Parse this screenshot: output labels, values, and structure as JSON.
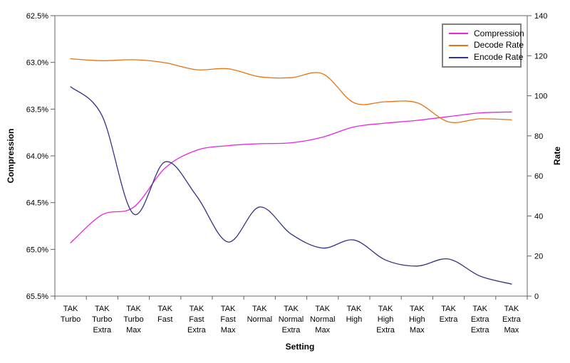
{
  "colors": {
    "frame": "#808080",
    "tick": "#606060",
    "text": "#000000",
    "background": "#ffffff"
  },
  "chart_data": {
    "type": "line",
    "title": "",
    "xlabel": "Setting",
    "ylabel_left": "Compression",
    "ylabel_right": "Rate",
    "grid": false,
    "smooth": true,
    "legend_position": "top-right",
    "categories": [
      "TAK Turbo",
      "TAK Turbo Extra",
      "TAK Turbo Max",
      "TAK Fast",
      "TAK Fast Extra",
      "TAK Fast Max",
      "TAK Normal",
      "TAK Normal Extra",
      "TAK Normal Max",
      "TAK High",
      "TAK High Extra",
      "TAK High Max",
      "TAK Extra",
      "TAK Extra Extra",
      "TAK Extra Max"
    ],
    "left_axis": {
      "label": "Compression",
      "tick_labels": [
        "62.5%",
        "63.0%",
        "63.5%",
        "64.0%",
        "64.5%",
        "65.0%",
        "65.5%"
      ],
      "tick_values": [
        62.5,
        63.0,
        63.5,
        64.0,
        64.5,
        65.0,
        65.5
      ],
      "min": 62.5,
      "max": 65.5,
      "inverted": true
    },
    "right_axis": {
      "label": "Rate",
      "tick_labels": [
        "140",
        "120",
        "100",
        "80",
        "60",
        "40",
        "20",
        "0"
      ],
      "tick_values": [
        140,
        120,
        100,
        80,
        60,
        40,
        20,
        0
      ],
      "min": 0,
      "max": 140
    },
    "series": [
      {
        "name": "Compression",
        "axis": "left",
        "color": "#E926DC",
        "values": [
          64.93,
          64.63,
          64.55,
          64.13,
          63.94,
          63.89,
          63.87,
          63.86,
          63.8,
          63.69,
          63.65,
          63.62,
          63.58,
          63.54,
          63.53
        ]
      },
      {
        "name": "Decode Rate",
        "axis": "right",
        "color": "#E8720F",
        "values": [
          118.5,
          117.5,
          118.0,
          116.5,
          113.0,
          113.5,
          109.5,
          109.0,
          111.0,
          96.5,
          97.0,
          96.5,
          87.0,
          88.5,
          88.0
        ]
      },
      {
        "name": "Encode Rate",
        "axis": "right",
        "color": "#333388",
        "values": [
          104.5,
          90.0,
          41.0,
          67.0,
          50.0,
          27.0,
          44.5,
          31.0,
          24.0,
          28.0,
          18.0,
          15.0,
          18.5,
          10.0,
          6.0
        ]
      }
    ]
  }
}
